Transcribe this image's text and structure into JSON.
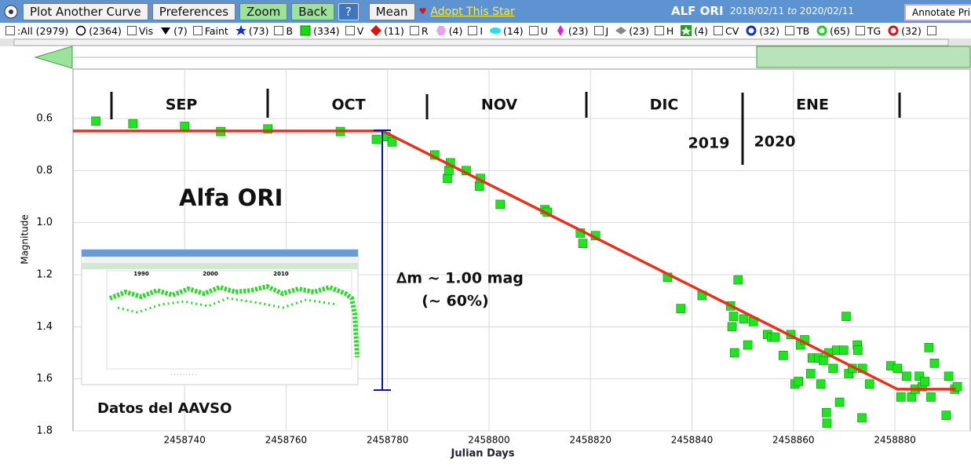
{
  "toolbar": {
    "buttons": [
      "Plot Another Curve",
      "Preferences",
      "Zoom",
      "Back",
      "?",
      "Mean"
    ],
    "adopt": "Adopt This Star",
    "star": "ALF ORI",
    "date_from": "2018/02/11",
    "date_sep": "to",
    "date_to": "2020/02/11",
    "annotate": "Annotate Prin"
  },
  "filters": {
    "all": ":All (2979)",
    "items": [
      {
        "count": "(2364)",
        "label": "Vis"
      },
      {
        "count": "(7)",
        "label": "Faint"
      },
      {
        "count": "(73)",
        "label": "B"
      },
      {
        "count": "(334)",
        "label": "V"
      },
      {
        "count": "(11)",
        "label": "R"
      },
      {
        "count": "(4)",
        "label": "I"
      },
      {
        "count": "(14)",
        "label": "U"
      },
      {
        "count": "(23)",
        "label": "J"
      },
      {
        "count": "(23)",
        "label": "H"
      },
      {
        "count": "(4)",
        "label": "CV"
      },
      {
        "count": "(32)",
        "label": "TB"
      },
      {
        "count": "(65)",
        "label": "TG"
      },
      {
        "count": "(32)"
      }
    ]
  },
  "chart_data": {
    "type": "scatter",
    "x_label": "Julian Days",
    "y_label": "Magnitude",
    "invert_y": true,
    "grid": true,
    "xlim": [
      2458718,
      2458895
    ],
    "xticks": [
      2458740,
      2458760,
      2458780,
      2458800,
      2458820,
      2458840,
      2458860,
      2458880
    ],
    "ylim": [
      0.41,
      1.8
    ],
    "yticks": [
      0.6,
      0.8,
      {
        "value": 1,
        "label": "1.0"
      },
      1.2,
      1.4,
      1.6,
      1.8
    ],
    "x": [
      2458722.5,
      2458729.8,
      2458740,
      2458747.1,
      2458756.4,
      2458770.7,
      2458777.8,
      2458779.7,
      2458780.9,
      2458789.3,
      2458791.8,
      2458792.1,
      2458792.4,
      2458795.5,
      2458798.1,
      2458798.3,
      2458802.2,
      2458811,
      2458811.5,
      2458818,
      2458818.5,
      2458821,
      2458835.2,
      2458837.8,
      2458842,
      2458847.6,
      2458848.2,
      2458847.9,
      2458848.4,
      2458849.1,
      2458850.2,
      2458851,
      2458852.1,
      2458854.9,
      2458855.7,
      2458856.4,
      2458858,
      2458859.5,
      2458860.3,
      2458861,
      2458861.4,
      2458862.2,
      2458863.4,
      2458863.7,
      2458865,
      2458865.4,
      2458865.9,
      2458866.5,
      2458866.6,
      2458867,
      2458867.8,
      2458868.5,
      2458869.1,
      2458869.9,
      2458870.4,
      2458870.9,
      2458871.6,
      2458872.6,
      2458872.7,
      2458873.5,
      2458873.6,
      2458875,
      2458879.2,
      2458880.5,
      2458881.2,
      2458882.3,
      2458883.3,
      2458884,
      2458884.8,
      2458885.4,
      2458885.9,
      2458886.7,
      2458887.1,
      2458887.8,
      2458890.1,
      2458890.6,
      2458891.8,
      2458892.3
    ],
    "series": [
      {
        "color": "#1ee61e",
        "values": [
          0.61,
          0.62,
          0.63,
          0.65,
          0.64,
          0.65,
          0.68,
          0.67,
          0.69,
          0.74,
          0.83,
          0.8,
          0.77,
          0.8,
          0.86,
          0.83,
          0.93,
          0.95,
          0.96,
          1.04,
          1.08,
          1.05,
          1.21,
          1.33,
          1.28,
          1.32,
          1.36,
          1.4,
          1.5,
          1.22,
          1.37,
          1.47,
          1.38,
          1.43,
          1.44,
          1.44,
          1.51,
          1.43,
          1.62,
          1.61,
          1.47,
          1.45,
          1.58,
          1.52,
          1.52,
          1.62,
          1.53,
          1.73,
          1.77,
          1.5,
          1.56,
          1.49,
          1.69,
          1.49,
          1.36,
          1.58,
          1.56,
          1.47,
          1.49,
          1.75,
          1.56,
          1.62,
          1.55,
          1.56,
          1.67,
          1.59,
          1.67,
          1.64,
          1.59,
          1.63,
          1.61,
          1.48,
          1.67,
          1.54,
          1.74,
          1.59,
          1.64,
          1.63
        ]
      }
    ],
    "fit_line": {
      "color": "#e8301c",
      "x": [
        2458718,
        2458779,
        2458880.5,
        2458892
      ],
      "values": [
        0.648,
        0.648,
        1.64,
        1.64
      ]
    },
    "months": [
      "SEP",
      "OCT",
      "NOV",
      "DIC",
      "ENE"
    ],
    "years": [
      "2019",
      "2020"
    ],
    "annotations": [
      "Alfa ORI",
      "∆m ~ 1.00 mag",
      "(~ 60%)",
      "Datos del AAVSO"
    ],
    "inset_years": [
      "1990",
      "2000",
      "2010"
    ]
  }
}
